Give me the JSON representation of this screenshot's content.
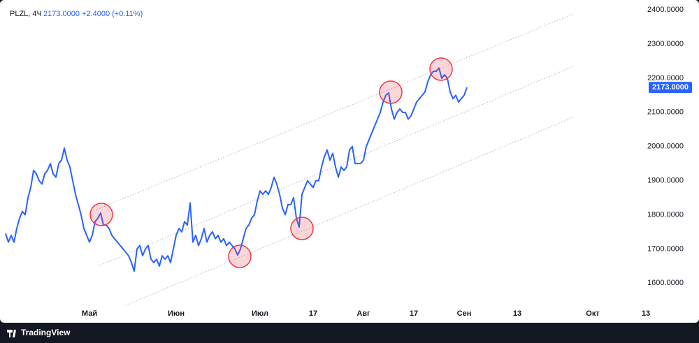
{
  "chart_data": {
    "type": "line",
    "title": "PLZL, 4Ч",
    "last_price": "2173.0000",
    "change": "+2.4000 (+0.11%)",
    "brand": "TradingView",
    "color": "#2962ff",
    "values": [
      1745,
      1720,
      1740,
      1720,
      1760,
      1790,
      1810,
      1800,
      1850,
      1880,
      1930,
      1920,
      1900,
      1890,
      1920,
      1930,
      1950,
      1920,
      1910,
      1950,
      1960,
      1995,
      1960,
      1940,
      1900,
      1860,
      1830,
      1800,
      1760,
      1740,
      1720,
      1740,
      1780,
      1790,
      1805,
      1770,
      1770,
      1760,
      1740,
      1730,
      1720,
      1710,
      1700,
      1690,
      1680,
      1660,
      1635,
      1700,
      1710,
      1680,
      1700,
      1710,
      1670,
      1660,
      1670,
      1650,
      1680,
      1670,
      1680,
      1660,
      1700,
      1740,
      1760,
      1750,
      1780,
      1770,
      1835,
      1720,
      1740,
      1710,
      1730,
      1760,
      1720,
      1740,
      1750,
      1730,
      1740,
      1720,
      1730,
      1710,
      1720,
      1710,
      1700,
      1682,
      1700,
      1730,
      1760,
      1770,
      1790,
      1800,
      1840,
      1870,
      1860,
      1870,
      1860,
      1880,
      1910,
      1890,
      1860,
      1820,
      1800,
      1830,
      1830,
      1850,
      1790,
      1764,
      1860,
      1880,
      1900,
      1890,
      1880,
      1900,
      1900,
      1940,
      1970,
      1990,
      1960,
      1980,
      1940,
      1910,
      1940,
      1930,
      1940,
      1990,
      2000,
      1950,
      1950,
      1950,
      1960,
      2000,
      2020,
      2040,
      2060,
      2080,
      2100,
      2130,
      2150,
      2157,
      2110,
      2080,
      2100,
      2110,
      2100,
      2100,
      2080,
      2090,
      2110,
      2130,
      2140,
      2150,
      2160,
      2190,
      2210,
      2220,
      2220,
      2230,
      2200,
      2210,
      2200,
      2160,
      2140,
      2150,
      2130,
      2140,
      2150,
      2173
    ],
    "xlim": [
      -2,
      229.25
    ],
    "xticks": [
      {
        "value": 30,
        "label": "Май"
      },
      {
        "value": 61,
        "label": "Июн"
      },
      {
        "value": 91,
        "label": "Июл"
      },
      {
        "value": 110,
        "label": "17"
      },
      {
        "value": 128,
        "label": "Авг"
      },
      {
        "value": 146,
        "label": "17"
      },
      {
        "value": 164,
        "label": "Сен"
      },
      {
        "value": 183,
        "label": "13"
      },
      {
        "value": 210,
        "label": "Окт"
      },
      {
        "value": 229,
        "label": "13"
      }
    ],
    "ylim": [
      1488,
      2429
    ],
    "yticks": [
      {
        "value": 1600,
        "label": "1600.0000"
      },
      {
        "value": 1700,
        "label": "1700.0000"
      },
      {
        "value": 1800,
        "label": "1800.0000"
      },
      {
        "value": 1900,
        "label": "1900.0000"
      },
      {
        "value": 2000,
        "label": "2000.0000"
      },
      {
        "value": 2100,
        "label": "2100.0000"
      },
      {
        "value": 2200,
        "label": "2200.0000"
      },
      {
        "value": 2300,
        "label": "2300.0000"
      },
      {
        "value": 2400,
        "label": "2400.0000"
      }
    ]
  }
}
